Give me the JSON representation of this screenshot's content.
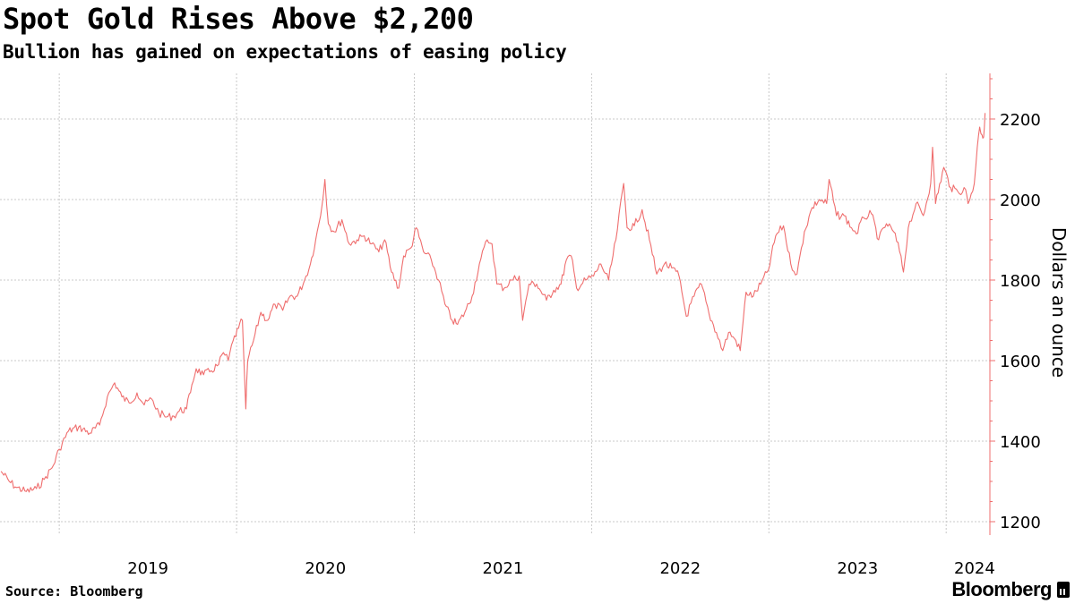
{
  "chart_data": {
    "type": "line",
    "title": "Spot Gold Rises Above $2,200",
    "subtitle": "Bullion has gained on expectations of easing policy",
    "ylabel": "Dollars an ounce",
    "xlabel": "",
    "ylim": [
      1200,
      2300
    ],
    "yticks": [
      1200,
      1400,
      1600,
      1800,
      2000,
      2200
    ],
    "xticks": [
      "2019",
      "2020",
      "2021",
      "2022",
      "2023",
      "2024"
    ],
    "xlim": [
      "2018-09-01",
      "2024-03-31"
    ],
    "grid": true,
    "line_color": "#ef6e6e",
    "series": [
      {
        "name": "",
        "points": [
          [
            "2018-09-03",
            1325
          ],
          [
            "2018-09-20",
            1300
          ],
          [
            "2018-10-05",
            1285
          ],
          [
            "2018-10-25",
            1275
          ],
          [
            "2018-11-15",
            1282
          ],
          [
            "2018-12-01",
            1305
          ],
          [
            "2018-12-20",
            1340
          ],
          [
            "2019-01-01",
            1380
          ],
          [
            "2019-01-20",
            1425
          ],
          [
            "2019-02-10",
            1435
          ],
          [
            "2019-03-05",
            1420
          ],
          [
            "2019-03-25",
            1440
          ],
          [
            "2019-04-10",
            1510
          ],
          [
            "2019-04-25",
            1545
          ],
          [
            "2019-05-10",
            1510
          ],
          [
            "2019-05-25",
            1495
          ],
          [
            "2019-06-10",
            1520
          ],
          [
            "2019-06-25",
            1490
          ],
          [
            "2019-07-10",
            1505
          ],
          [
            "2019-07-25",
            1470
          ],
          [
            "2019-08-10",
            1460
          ],
          [
            "2019-08-25",
            1462
          ],
          [
            "2019-09-05",
            1475
          ],
          [
            "2019-09-20",
            1480
          ],
          [
            "2019-10-01",
            1540
          ],
          [
            "2019-10-10",
            1580
          ],
          [
            "2019-10-25",
            1565
          ],
          [
            "2019-11-10",
            1575
          ],
          [
            "2019-11-25",
            1590
          ],
          [
            "2019-12-05",
            1620
          ],
          [
            "2019-12-15",
            1600
          ],
          [
            "2019-12-25",
            1650
          ],
          [
            "2020-01-05",
            1680
          ],
          [
            "2020-01-13",
            1700
          ],
          [
            "2020-01-20",
            1480
          ],
          [
            "2020-01-24",
            1600
          ],
          [
            "2020-02-05",
            1650
          ],
          [
            "2020-02-20",
            1720
          ],
          [
            "2020-03-05",
            1700
          ],
          [
            "2020-03-20",
            1740
          ],
          [
            "2020-04-05",
            1725
          ],
          [
            "2020-04-20",
            1760
          ],
          [
            "2020-05-05",
            1760
          ],
          [
            "2020-05-20",
            1800
          ],
          [
            "2020-06-01",
            1840
          ],
          [
            "2020-06-12",
            1900
          ],
          [
            "2020-06-22",
            1960
          ],
          [
            "2020-07-01",
            2050
          ],
          [
            "2020-07-08",
            1940
          ],
          [
            "2020-07-20",
            1920
          ],
          [
            "2020-08-05",
            1950
          ],
          [
            "2020-08-20",
            1890
          ],
          [
            "2020-09-05",
            1900
          ],
          [
            "2020-09-20",
            1910
          ],
          [
            "2020-10-05",
            1890
          ],
          [
            "2020-10-20",
            1870
          ],
          [
            "2020-11-01",
            1900
          ],
          [
            "2020-11-15",
            1820
          ],
          [
            "2020-11-30",
            1780
          ],
          [
            "2020-12-10",
            1860
          ],
          [
            "2020-12-25",
            1880
          ],
          [
            "2021-01-05",
            1930
          ],
          [
            "2021-01-20",
            1870
          ],
          [
            "2021-02-05",
            1850
          ],
          [
            "2021-02-20",
            1800
          ],
          [
            "2021-03-05",
            1740
          ],
          [
            "2021-03-20",
            1700
          ],
          [
            "2021-03-31",
            1690
          ],
          [
            "2021-04-15",
            1720
          ],
          [
            "2021-04-30",
            1760
          ],
          [
            "2021-05-15",
            1840
          ],
          [
            "2021-05-31",
            1900
          ],
          [
            "2021-06-10",
            1890
          ],
          [
            "2021-06-20",
            1790
          ],
          [
            "2021-07-05",
            1780
          ],
          [
            "2021-07-20",
            1800
          ],
          [
            "2021-08-05",
            1810
          ],
          [
            "2021-08-12",
            1700
          ],
          [
            "2021-08-25",
            1790
          ],
          [
            "2021-09-10",
            1790
          ],
          [
            "2021-09-30",
            1750
          ],
          [
            "2021-10-15",
            1775
          ],
          [
            "2021-10-30",
            1790
          ],
          [
            "2021-11-10",
            1850
          ],
          [
            "2021-11-20",
            1860
          ],
          [
            "2021-12-01",
            1780
          ],
          [
            "2021-12-20",
            1800
          ],
          [
            "2022-01-05",
            1810
          ],
          [
            "2022-01-20",
            1840
          ],
          [
            "2022-02-05",
            1800
          ],
          [
            "2022-02-20",
            1900
          ],
          [
            "2022-03-08",
            2040
          ],
          [
            "2022-03-15",
            1930
          ],
          [
            "2022-03-30",
            1935
          ],
          [
            "2022-04-15",
            1975
          ],
          [
            "2022-04-30",
            1900
          ],
          [
            "2022-05-15",
            1815
          ],
          [
            "2022-05-31",
            1840
          ],
          [
            "2022-06-15",
            1830
          ],
          [
            "2022-06-30",
            1810
          ],
          [
            "2022-07-15",
            1710
          ],
          [
            "2022-07-31",
            1760
          ],
          [
            "2022-08-15",
            1790
          ],
          [
            "2022-08-31",
            1715
          ],
          [
            "2022-09-15",
            1670
          ],
          [
            "2022-09-28",
            1625
          ],
          [
            "2022-10-10",
            1670
          ],
          [
            "2022-10-25",
            1650
          ],
          [
            "2022-11-03",
            1625
          ],
          [
            "2022-11-15",
            1770
          ],
          [
            "2022-11-30",
            1760
          ],
          [
            "2022-12-15",
            1790
          ],
          [
            "2022-12-31",
            1825
          ],
          [
            "2023-01-15",
            1910
          ],
          [
            "2023-01-31",
            1935
          ],
          [
            "2023-02-15",
            1840
          ],
          [
            "2023-02-28",
            1815
          ],
          [
            "2023-03-15",
            1920
          ],
          [
            "2023-03-31",
            1980
          ],
          [
            "2023-04-15",
            2000
          ],
          [
            "2023-04-30",
            1990
          ],
          [
            "2023-05-05",
            2050
          ],
          [
            "2023-05-20",
            1960
          ],
          [
            "2023-06-05",
            1960
          ],
          [
            "2023-06-20",
            1930
          ],
          [
            "2023-06-30",
            1915
          ],
          [
            "2023-07-15",
            1955
          ],
          [
            "2023-07-31",
            1965
          ],
          [
            "2023-08-15",
            1900
          ],
          [
            "2023-08-31",
            1940
          ],
          [
            "2023-09-15",
            1920
          ],
          [
            "2023-09-30",
            1860
          ],
          [
            "2023-10-05",
            1820
          ],
          [
            "2023-10-15",
            1930
          ],
          [
            "2023-10-31",
            1990
          ],
          [
            "2023-11-15",
            1960
          ],
          [
            "2023-11-30",
            2040
          ],
          [
            "2023-12-04",
            2130
          ],
          [
            "2023-12-10",
            1990
          ],
          [
            "2023-12-27",
            2080
          ],
          [
            "2024-01-10",
            2030
          ],
          [
            "2024-01-25",
            2020
          ],
          [
            "2024-02-10",
            2025
          ],
          [
            "2024-02-15",
            1990
          ],
          [
            "2024-02-28",
            2040
          ],
          [
            "2024-03-05",
            2130
          ],
          [
            "2024-03-10",
            2180
          ],
          [
            "2024-03-15",
            2160
          ],
          [
            "2024-03-18",
            2155
          ],
          [
            "2024-03-21",
            2215
          ]
        ]
      }
    ]
  },
  "footer": {
    "source": "Source: Bloomberg",
    "logo": "Bloomberg"
  }
}
